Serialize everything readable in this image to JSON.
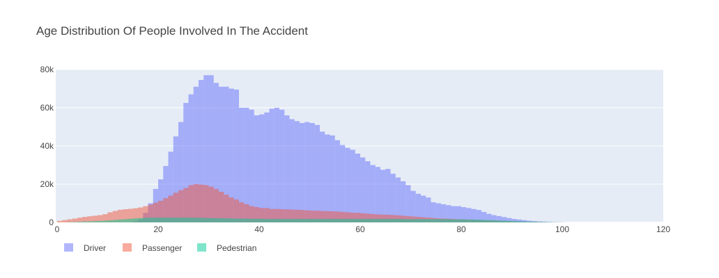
{
  "chart_data": {
    "type": "histogram",
    "title": "Age Distribution Of People Involved In The Accident",
    "xlabel": "",
    "ylabel": "",
    "xlim": [
      0,
      120
    ],
    "ylim": [
      0,
      80000
    ],
    "bin_width": 1,
    "x_ticks": [
      0,
      20,
      40,
      60,
      80,
      100,
      120
    ],
    "y_ticks": [
      0,
      20000,
      40000,
      60000,
      80000
    ],
    "y_tick_labels": [
      "0",
      "20k",
      "40k",
      "60k",
      "80k"
    ],
    "barmode": "overlay",
    "grid": true,
    "legend_position": "bottom-left, horizontal",
    "series": [
      {
        "name": "Driver",
        "color": "#636efa",
        "bins": [
          [
            15,
            500
          ],
          [
            16,
            1500
          ],
          [
            17,
            5000
          ],
          [
            18,
            10000
          ],
          [
            19,
            17500
          ],
          [
            20,
            22500
          ],
          [
            21,
            29500
          ],
          [
            22,
            37000
          ],
          [
            23,
            45000
          ],
          [
            24,
            52500
          ],
          [
            25,
            62500
          ],
          [
            26,
            67000
          ],
          [
            27,
            71000
          ],
          [
            28,
            74500
          ],
          [
            29,
            77000
          ],
          [
            30,
            77000
          ],
          [
            31,
            73000
          ],
          [
            32,
            71000
          ],
          [
            33,
            71000
          ],
          [
            34,
            70000
          ],
          [
            35,
            69500
          ],
          [
            36,
            60000
          ],
          [
            37,
            60000
          ],
          [
            38,
            59000
          ],
          [
            39,
            56000
          ],
          [
            40,
            56500
          ],
          [
            41,
            57500
          ],
          [
            42,
            59500
          ],
          [
            43,
            60000
          ],
          [
            44,
            59000
          ],
          [
            45,
            56000
          ],
          [
            46,
            54000
          ],
          [
            47,
            53000
          ],
          [
            48,
            52000
          ],
          [
            49,
            52500
          ],
          [
            50,
            52000
          ],
          [
            51,
            51000
          ],
          [
            52,
            47500
          ],
          [
            53,
            46000
          ],
          [
            54,
            45500
          ],
          [
            55,
            43000
          ],
          [
            56,
            40500
          ],
          [
            57,
            39000
          ],
          [
            58,
            38000
          ],
          [
            59,
            36000
          ],
          [
            60,
            34000
          ],
          [
            61,
            32000
          ],
          [
            62,
            30000
          ],
          [
            63,
            29000
          ],
          [
            64,
            27500
          ],
          [
            65,
            28000
          ],
          [
            66,
            25500
          ],
          [
            67,
            23500
          ],
          [
            68,
            21500
          ],
          [
            69,
            19500
          ],
          [
            70,
            16500
          ],
          [
            71,
            15000
          ],
          [
            72,
            14000
          ],
          [
            73,
            13000
          ],
          [
            74,
            10500
          ],
          [
            75,
            10000
          ],
          [
            76,
            9500
          ],
          [
            77,
            9000
          ],
          [
            78,
            8500
          ],
          [
            79,
            8500
          ],
          [
            80,
            8000
          ],
          [
            81,
            7500
          ],
          [
            82,
            7000
          ],
          [
            83,
            6500
          ],
          [
            84,
            5500
          ],
          [
            85,
            4500
          ],
          [
            86,
            3800
          ],
          [
            87,
            3300
          ],
          [
            88,
            2800
          ],
          [
            89,
            2300
          ],
          [
            90,
            1800
          ],
          [
            91,
            1500
          ],
          [
            92,
            1200
          ],
          [
            93,
            900
          ],
          [
            94,
            700
          ],
          [
            95,
            500
          ],
          [
            96,
            400
          ],
          [
            97,
            250
          ],
          [
            98,
            150
          ],
          [
            99,
            80
          ],
          [
            100,
            50
          ]
        ]
      },
      {
        "name": "Passenger",
        "color": "#ef553b",
        "bins": [
          [
            0,
            800
          ],
          [
            1,
            1200
          ],
          [
            2,
            1600
          ],
          [
            3,
            2000
          ],
          [
            4,
            2500
          ],
          [
            5,
            2900
          ],
          [
            6,
            3200
          ],
          [
            7,
            3500
          ],
          [
            8,
            3800
          ],
          [
            9,
            4300
          ],
          [
            10,
            5300
          ],
          [
            11,
            6000
          ],
          [
            12,
            6600
          ],
          [
            13,
            6900
          ],
          [
            14,
            7100
          ],
          [
            15,
            7400
          ],
          [
            16,
            7800
          ],
          [
            17,
            8500
          ],
          [
            18,
            9300
          ],
          [
            19,
            10300
          ],
          [
            20,
            11300
          ],
          [
            21,
            12700
          ],
          [
            22,
            14000
          ],
          [
            23,
            15500
          ],
          [
            24,
            16800
          ],
          [
            25,
            18000
          ],
          [
            26,
            19500
          ],
          [
            27,
            20000
          ],
          [
            28,
            19800
          ],
          [
            29,
            19500
          ],
          [
            30,
            18700
          ],
          [
            31,
            17500
          ],
          [
            32,
            16000
          ],
          [
            33,
            14500
          ],
          [
            34,
            13000
          ],
          [
            35,
            12000
          ],
          [
            36,
            10500
          ],
          [
            37,
            9500
          ],
          [
            38,
            8500
          ],
          [
            39,
            8000
          ],
          [
            40,
            7500
          ],
          [
            41,
            7500
          ],
          [
            42,
            7000
          ],
          [
            43,
            7000
          ],
          [
            44,
            6900
          ],
          [
            45,
            6800
          ],
          [
            46,
            6700
          ],
          [
            47,
            6600
          ],
          [
            48,
            6500
          ],
          [
            49,
            6300
          ],
          [
            50,
            6200
          ],
          [
            51,
            6100
          ],
          [
            52,
            6000
          ],
          [
            53,
            5900
          ],
          [
            54,
            5800
          ],
          [
            55,
            5700
          ],
          [
            56,
            5500
          ],
          [
            57,
            5300
          ],
          [
            58,
            5100
          ],
          [
            59,
            5000
          ],
          [
            60,
            4800
          ],
          [
            61,
            4600
          ],
          [
            62,
            4400
          ],
          [
            63,
            4200
          ],
          [
            64,
            4100
          ],
          [
            65,
            4000
          ],
          [
            66,
            3900
          ],
          [
            67,
            3700
          ],
          [
            68,
            3500
          ],
          [
            69,
            3300
          ],
          [
            70,
            3100
          ],
          [
            71,
            2900
          ],
          [
            72,
            2700
          ],
          [
            73,
            2500
          ],
          [
            74,
            2300
          ],
          [
            75,
            2100
          ],
          [
            76,
            2000
          ],
          [
            77,
            1900
          ],
          [
            78,
            1800
          ],
          [
            79,
            1700
          ],
          [
            80,
            1600
          ],
          [
            81,
            1500
          ],
          [
            82,
            1400
          ],
          [
            83,
            1300
          ],
          [
            84,
            1200
          ],
          [
            85,
            1100
          ],
          [
            86,
            1000
          ],
          [
            87,
            900
          ],
          [
            88,
            800
          ],
          [
            89,
            700
          ],
          [
            90,
            600
          ],
          [
            91,
            500
          ],
          [
            92,
            400
          ],
          [
            93,
            300
          ],
          [
            94,
            250
          ],
          [
            95,
            200
          ],
          [
            96,
            150
          ],
          [
            97,
            100
          ],
          [
            98,
            70
          ],
          [
            99,
            50
          ]
        ]
      },
      {
        "name": "Pedestrian",
        "color": "#00cc96",
        "bins": [
          [
            2,
            150
          ],
          [
            3,
            250
          ],
          [
            4,
            350
          ],
          [
            5,
            450
          ],
          [
            6,
            550
          ],
          [
            7,
            650
          ],
          [
            8,
            750
          ],
          [
            9,
            900
          ],
          [
            10,
            1100
          ],
          [
            11,
            1300
          ],
          [
            12,
            1500
          ],
          [
            13,
            1700
          ],
          [
            14,
            1900
          ],
          [
            15,
            2100
          ],
          [
            16,
            2300
          ],
          [
            17,
            2400
          ],
          [
            18,
            2500
          ],
          [
            19,
            2500
          ],
          [
            20,
            2500
          ],
          [
            21,
            2500
          ],
          [
            22,
            2500
          ],
          [
            23,
            2500
          ],
          [
            24,
            2500
          ],
          [
            25,
            2500
          ],
          [
            26,
            2500
          ],
          [
            27,
            2400
          ],
          [
            28,
            2400
          ],
          [
            29,
            2300
          ],
          [
            30,
            2300
          ],
          [
            31,
            2200
          ],
          [
            32,
            2200
          ],
          [
            33,
            2100
          ],
          [
            34,
            2100
          ],
          [
            35,
            2000
          ],
          [
            36,
            2000
          ],
          [
            37,
            2000
          ],
          [
            38,
            1900
          ],
          [
            39,
            1900
          ],
          [
            40,
            1900
          ],
          [
            41,
            1800
          ],
          [
            42,
            1800
          ],
          [
            43,
            1800
          ],
          [
            44,
            1800
          ],
          [
            45,
            1800
          ],
          [
            46,
            1800
          ],
          [
            47,
            1800
          ],
          [
            48,
            1800
          ],
          [
            49,
            1800
          ],
          [
            50,
            1800
          ],
          [
            51,
            1800
          ],
          [
            52,
            1800
          ],
          [
            53,
            1800
          ],
          [
            54,
            1800
          ],
          [
            55,
            1800
          ],
          [
            56,
            1800
          ],
          [
            57,
            1800
          ],
          [
            58,
            1800
          ],
          [
            59,
            1800
          ],
          [
            60,
            1800
          ],
          [
            61,
            1800
          ],
          [
            62,
            1800
          ],
          [
            63,
            1800
          ],
          [
            64,
            1800
          ],
          [
            65,
            1800
          ],
          [
            66,
            1800
          ],
          [
            67,
            1800
          ],
          [
            68,
            1700
          ],
          [
            69,
            1700
          ],
          [
            70,
            1700
          ],
          [
            71,
            1700
          ],
          [
            72,
            1700
          ],
          [
            73,
            1700
          ],
          [
            74,
            1700
          ],
          [
            75,
            1700
          ],
          [
            76,
            1700
          ],
          [
            77,
            1700
          ],
          [
            78,
            1600
          ],
          [
            79,
            1600
          ],
          [
            80,
            1600
          ],
          [
            81,
            1500
          ],
          [
            82,
            1500
          ],
          [
            83,
            1400
          ],
          [
            84,
            1300
          ],
          [
            85,
            1200
          ],
          [
            86,
            1100
          ],
          [
            87,
            1000
          ],
          [
            88,
            900
          ],
          [
            89,
            800
          ],
          [
            90,
            700
          ],
          [
            91,
            600
          ],
          [
            92,
            500
          ],
          [
            93,
            400
          ],
          [
            94,
            300
          ],
          [
            95,
            250
          ],
          [
            96,
            200
          ],
          [
            97,
            150
          ],
          [
            98,
            100
          ],
          [
            99,
            60
          ]
        ]
      }
    ]
  }
}
